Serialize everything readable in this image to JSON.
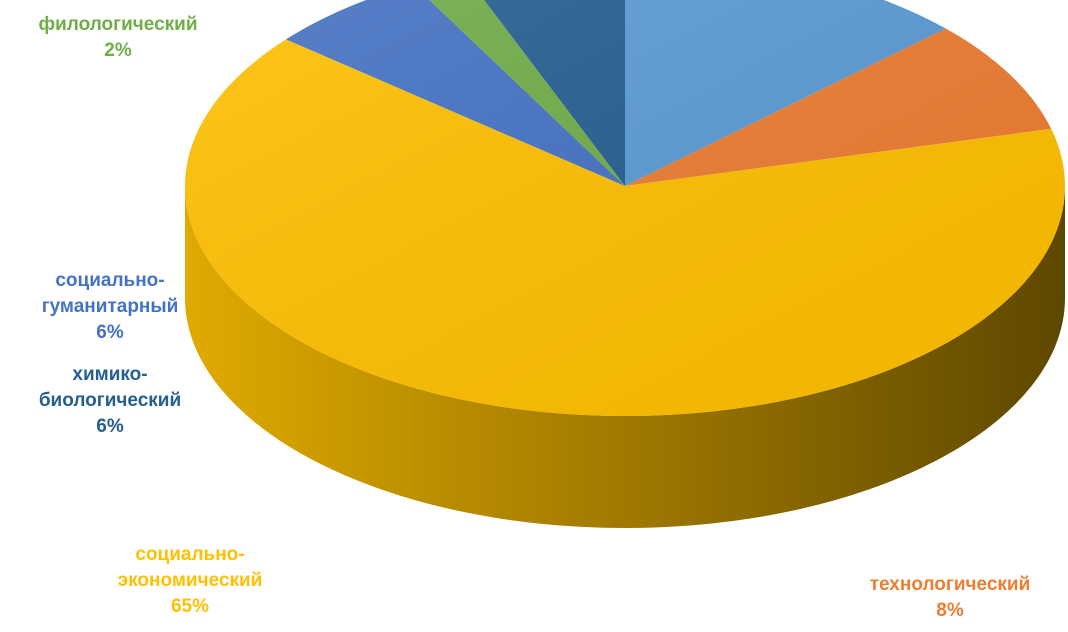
{
  "chart_data": {
    "type": "pie",
    "style": "3d",
    "slices": [
      {
        "key": "s1",
        "label": "",
        "name_lines": [],
        "value": 13,
        "color": "#5B9BD5"
      },
      {
        "key": "technological",
        "label": "8%",
        "name_lines": [
          "технологический"
        ],
        "value": 8,
        "color": "#ED7D31"
      },
      {
        "key": "socioeconomic",
        "label": "65%",
        "name_lines": [
          "социально-",
          "экономический"
        ],
        "value": 65,
        "color": "#FFC000"
      },
      {
        "key": "sociohumanitarian",
        "label": "6%",
        "name_lines": [
          "социально-",
          "гуманитарный"
        ],
        "value": 6,
        "color": "#4472C4"
      },
      {
        "key": "philological",
        "label": "2%",
        "name_lines": [
          "филологический"
        ],
        "value": 2,
        "color": "#70AD47"
      },
      {
        "key": "chembio",
        "label": "6%",
        "name_lines": [
          "химико-",
          "биологический"
        ],
        "value": 6,
        "color": "#255E91"
      }
    ]
  },
  "labels": {
    "technological": {
      "line1": "технологический",
      "pct": "8%",
      "color": "#ED7D31"
    },
    "socioeconomic": {
      "line1": "социально-",
      "line2": "экономический",
      "pct": "65%",
      "color": "#FFC000"
    },
    "sociohumanitarian": {
      "line1": "социально-",
      "line2": "гуманитарный",
      "pct": "6%",
      "color": "#4472C4"
    },
    "philological": {
      "line1": "филологический",
      "pct": "2%",
      "color": "#70AD47"
    },
    "chembio": {
      "line1": "химико-",
      "line2": "биологический",
      "pct": "6%",
      "color": "#255E91"
    }
  }
}
